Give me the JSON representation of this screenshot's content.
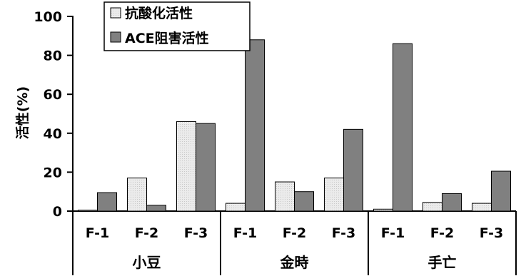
{
  "chart_data": {
    "type": "bar",
    "title": "",
    "ylabel": "活性(%)",
    "xlabel": "",
    "ylim": [
      0,
      100
    ],
    "yticks": [
      0,
      20,
      40,
      60,
      80,
      100
    ],
    "legend_position": "top-left",
    "groups": [
      {
        "name": "小豆",
        "categories": [
          "F-1",
          "F-2",
          "F-3"
        ]
      },
      {
        "name": "金時",
        "categories": [
          "F-1",
          "F-2",
          "F-3"
        ]
      },
      {
        "name": "手亡",
        "categories": [
          "F-1",
          "F-2",
          "F-3"
        ]
      }
    ],
    "categories": [
      "F-1",
      "F-2",
      "F-3",
      "F-1",
      "F-2",
      "F-3",
      "F-1",
      "F-2",
      "F-3"
    ],
    "series": [
      {
        "name": "抗酸化活性",
        "color": "#e6e6e6",
        "values": [
          0.5,
          17,
          46,
          4,
          15,
          17,
          1,
          4.5,
          4
        ]
      },
      {
        "name": "ACE阻害活性",
        "color": "#808080",
        "values": [
          9.5,
          3,
          45,
          88,
          10,
          42,
          86,
          9,
          20.5
        ]
      }
    ]
  }
}
